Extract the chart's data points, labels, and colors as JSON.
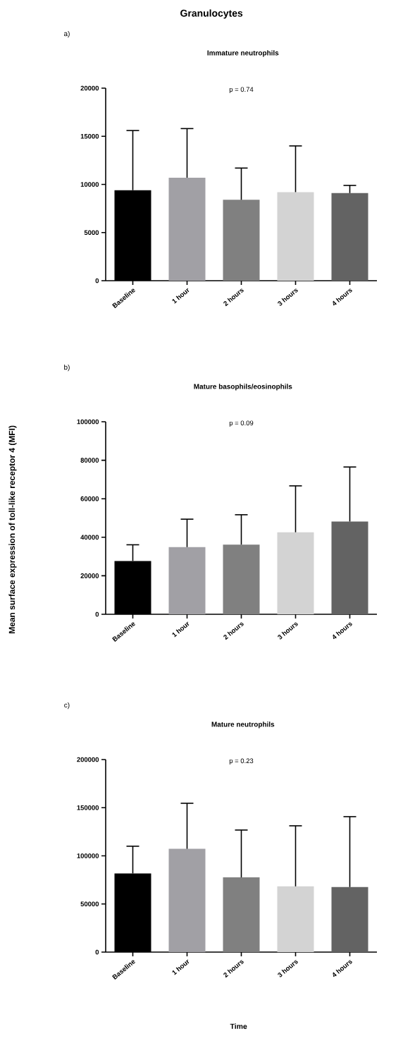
{
  "chart_data": [
    {
      "type": "bar",
      "title": "Granulocytes",
      "subtitle": "Immature neutrophils",
      "categories": [
        "Baseline",
        "1 hour",
        "2 hours",
        "3 hours",
        "4 hours"
      ],
      "values": [
        9400,
        10700,
        8400,
        9200,
        9100
      ],
      "errors": [
        6200,
        5100,
        3300,
        4800,
        800
      ],
      "colors": [
        "#000000",
        "#a1a0a5",
        "#808080",
        "#d3d3d3",
        "#636363"
      ],
      "ylim": [
        0,
        20000
      ],
      "yticks": [
        0,
        5000,
        10000,
        15000,
        20000
      ],
      "annotations": [
        "a)",
        "p = 0.74"
      ]
    },
    {
      "type": "bar",
      "title": "Mature basophils/eosinophils",
      "ylabel": "Mean surface expression of toll-like receptor 4 (MFI)",
      "categories": [
        "Baseline",
        "1 hour",
        "2 hours",
        "3 hours",
        "4 hours"
      ],
      "values": [
        27700,
        34900,
        36200,
        42600,
        48200
      ],
      "errors": [
        8400,
        14500,
        15500,
        24100,
        28300
      ],
      "colors": [
        "#000000",
        "#a1a0a5",
        "#808080",
        "#d3d3d3",
        "#636363"
      ],
      "ylim": [
        0,
        100000
      ],
      "yticks": [
        0,
        20000,
        40000,
        60000,
        80000,
        100000
      ],
      "annotations": [
        "b)",
        "p = 0.09"
      ]
    },
    {
      "type": "bar",
      "title": "Mature neutrophils",
      "xlabel": "Time",
      "categories": [
        "Baseline",
        "1 hour",
        "2 hours",
        "3 hours",
        "4 hours"
      ],
      "values": [
        81700,
        107300,
        77600,
        68300,
        67600
      ],
      "errors": [
        28300,
        47300,
        49200,
        62900,
        73100
      ],
      "colors": [
        "#000000",
        "#a1a0a5",
        "#808080",
        "#d3d3d3",
        "#636363"
      ],
      "ylim": [
        0,
        200000
      ],
      "yticks": [
        0,
        50000,
        100000,
        150000,
        200000
      ],
      "annotations": [
        "c)",
        "p = 0.23"
      ]
    }
  ]
}
